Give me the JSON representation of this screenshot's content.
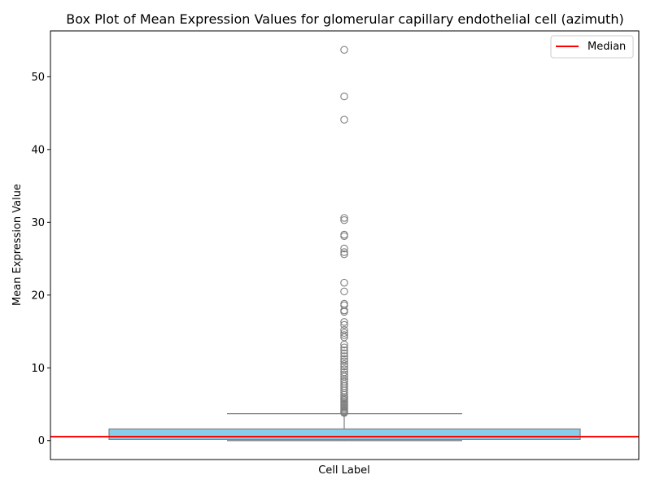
{
  "chart_data": {
    "type": "box",
    "title": "Box Plot of Mean Expression Values for glomerular capillary endothelial cell (azimuth)",
    "xlabel": "Cell Label",
    "ylabel": "Mean Expression Value",
    "ylim": [
      -2.6,
      56.3
    ],
    "yticks": [
      0,
      10,
      20,
      30,
      40,
      50
    ],
    "grid": false,
    "legend": {
      "placement": "top-right",
      "entries": [
        {
          "label": "Median",
          "color": "#ff0000"
        }
      ]
    },
    "colors": {
      "box_fill": "#87ceeb",
      "box_edge": "#7f7f7f",
      "median_line": "#ff0000",
      "whisker": "#7f7f7f",
      "flier": "#7f7f7f"
    },
    "box": {
      "whisker_low": 0.0,
      "q1": 0.15,
      "median": 0.55,
      "q3": 1.6,
      "whisker_high": 3.7
    },
    "median_reference_line": 0.55,
    "outliers": [
      53.7,
      47.3,
      44.1,
      30.6,
      30.3,
      28.3,
      28.1,
      26.4,
      25.9,
      25.6,
      21.7,
      20.5,
      18.8,
      18.6,
      17.9,
      17.7,
      16.3,
      15.9,
      15.2,
      14.8,
      14.5,
      14.2,
      13.2,
      12.8,
      12.4,
      12.0,
      11.6,
      11.2,
      10.9,
      10.5,
      10.2,
      9.8,
      9.4,
      9.1,
      8.8,
      8.4,
      8.1,
      7.8,
      7.5,
      7.2,
      6.9,
      6.6,
      6.3,
      6.0,
      5.8,
      5.6,
      5.4,
      5.2,
      5.0,
      4.8,
      4.6,
      4.4,
      4.2,
      4.0,
      3.9,
      3.8
    ]
  }
}
